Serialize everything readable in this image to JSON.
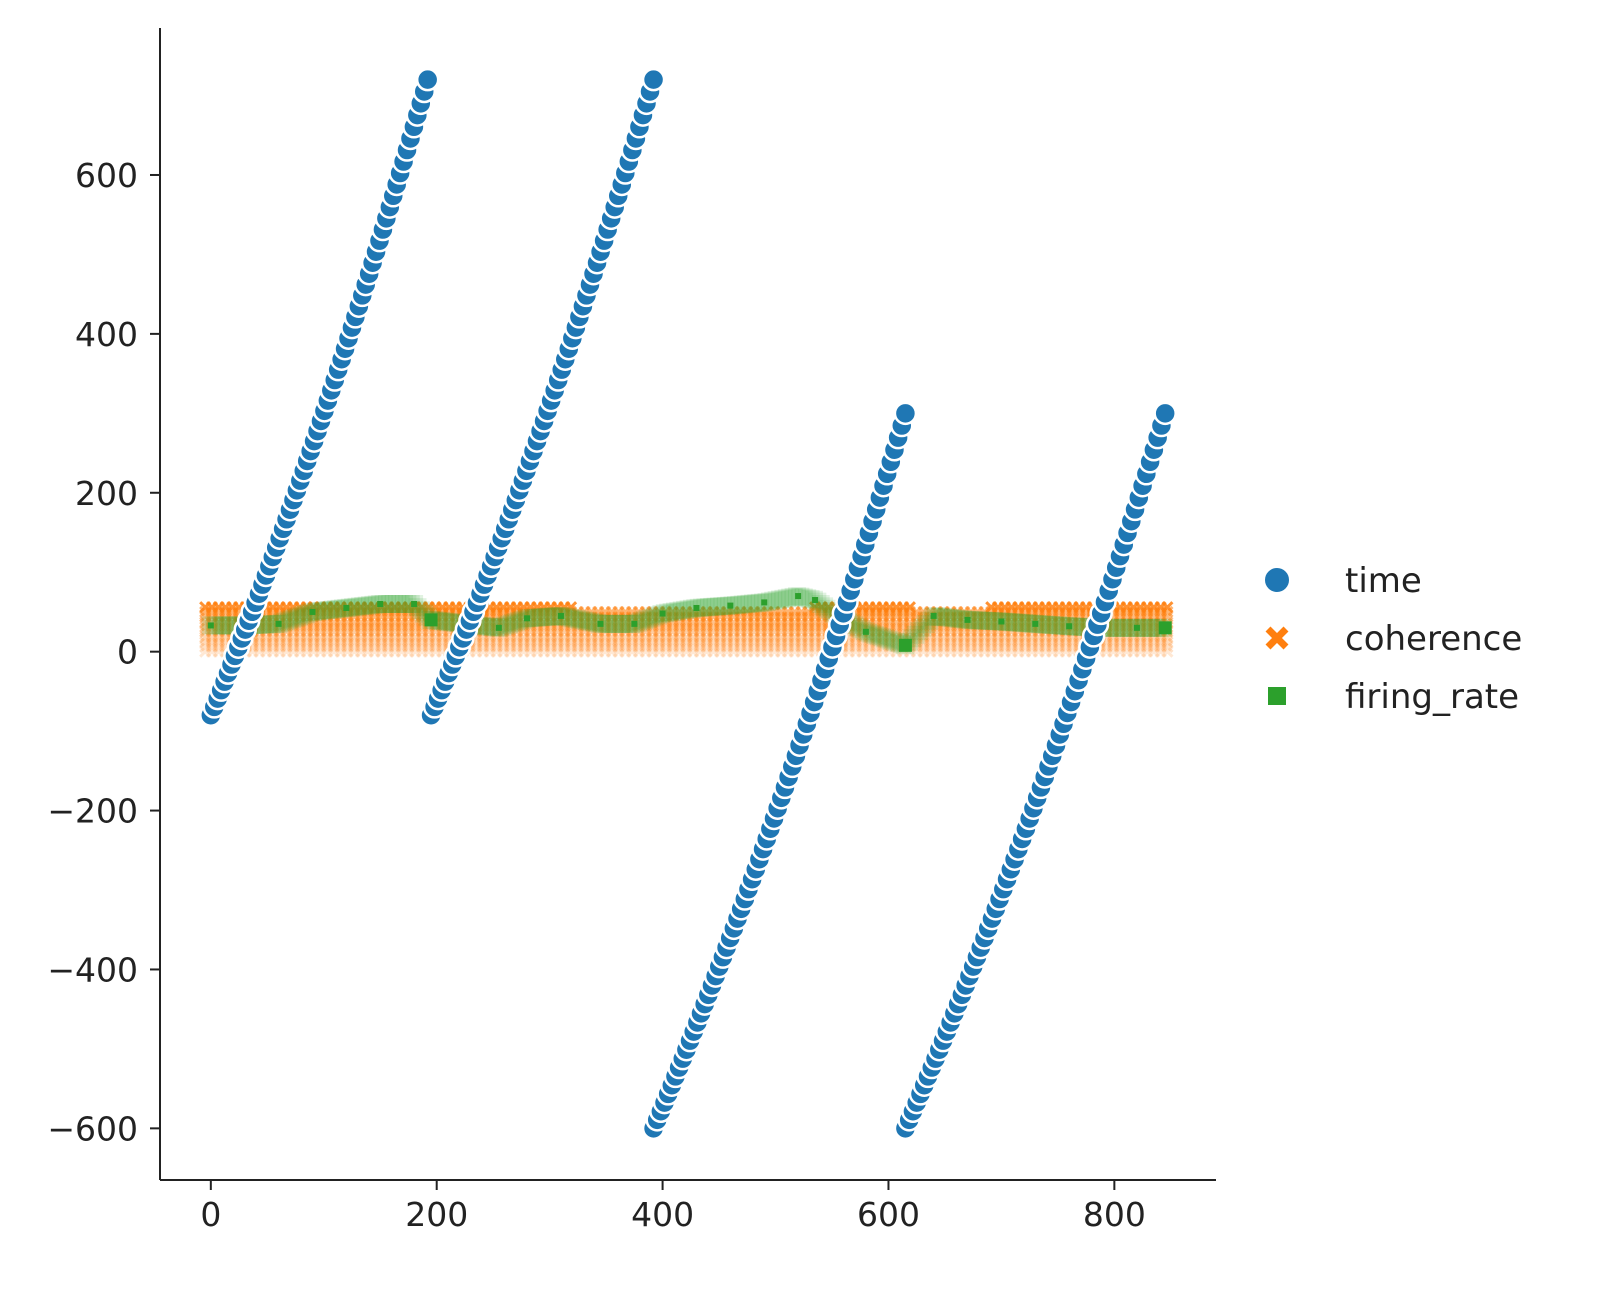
{
  "chart_data": {
    "type": "scatter",
    "title": "",
    "xlabel": "",
    "ylabel": "",
    "xlim": [
      -45,
      890
    ],
    "ylim": [
      -665,
      785
    ],
    "x_ticks": [
      0,
      200,
      400,
      600,
      800
    ],
    "y_ticks": [
      -600,
      -400,
      -200,
      0,
      200,
      400,
      600
    ],
    "grid": false,
    "legend_placement": "right",
    "legend": [
      {
        "name": "time",
        "color": "#1f77b4",
        "marker": "circle"
      },
      {
        "name": "coherence",
        "color": "#ff7f0e",
        "marker": "x"
      },
      {
        "name": "firing_rate",
        "color": "#2ca02c",
        "marker": "square"
      }
    ],
    "series": [
      {
        "name": "time",
        "segments": [
          {
            "x_start": 0,
            "x_end": 192,
            "y_start": -80,
            "y_end": 720,
            "points": 64
          },
          {
            "x_start": 195,
            "x_end": 392,
            "y_start": -80,
            "y_end": 720,
            "points": 64
          },
          {
            "x_start": 392,
            "x_end": 615,
            "y_start": -600,
            "y_end": 300,
            "points": 70
          },
          {
            "x_start": 615,
            "x_end": 845,
            "y_start": -600,
            "y_end": 300,
            "points": 70
          }
        ]
      },
      {
        "name": "coherence",
        "levels": [
          0,
          6,
          12,
          18,
          25,
          31,
          37,
          44,
          50,
          56
        ],
        "x_range": [
          -5,
          850
        ],
        "top_runs": [
          [
            -5,
            320
          ],
          [
            530,
            620
          ],
          [
            690,
            850
          ]
        ]
      },
      {
        "name": "firing_rate",
        "x": [
          0,
          30,
          60,
          90,
          120,
          150,
          180,
          195,
          225,
          255,
          280,
          310,
          345,
          375,
          400,
          430,
          460,
          490,
          520,
          535,
          555,
          580,
          615,
          640,
          670,
          700,
          730,
          760,
          790,
          820,
          845
        ],
        "y": [
          33,
          33,
          35,
          50,
          55,
          60,
          60,
          40,
          35,
          30,
          42,
          45,
          35,
          35,
          48,
          55,
          58,
          62,
          70,
          65,
          45,
          25,
          8,
          45,
          40,
          38,
          35,
          32,
          30,
          30,
          30
        ]
      }
    ]
  }
}
